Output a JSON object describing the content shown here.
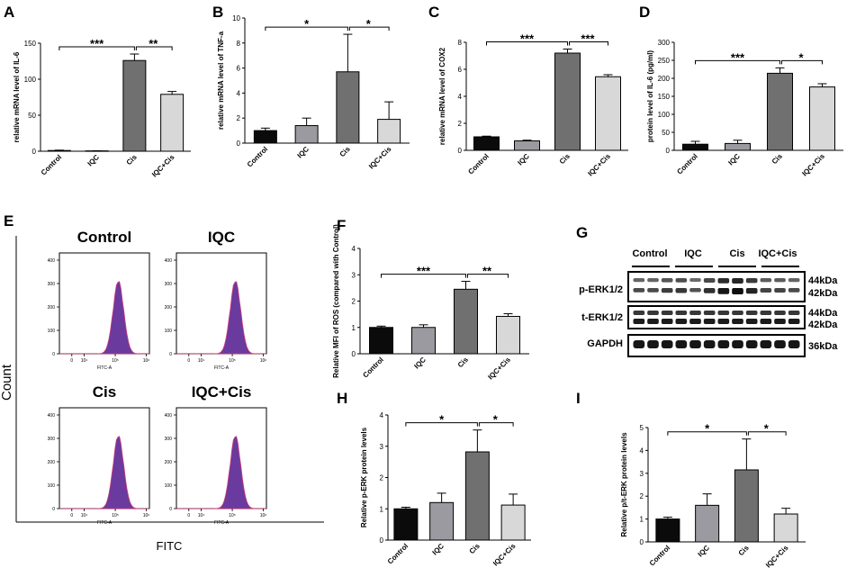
{
  "colors": {
    "control": "#0b0b0b",
    "iqc": "#9a9aa0",
    "cis": "#707070",
    "iqc_cis": "#d8d8d8",
    "histogram": "#6a3a9e",
    "histogram_edge": "#cf3a7a"
  },
  "chart_data": [
    {
      "id": "A",
      "type": "bar",
      "ylabel": "relative mRNA level of IL-6",
      "categories": [
        "Control",
        "IQC",
        "Cis",
        "IQC+Cis"
      ],
      "values": [
        1,
        0.5,
        126,
        79
      ],
      "errors": [
        0.5,
        0.2,
        9,
        4
      ],
      "ylim": [
        0,
        150
      ],
      "yticks": [
        "0",
        "50",
        "100",
        "150"
      ],
      "sig": [
        {
          "from": 0,
          "to": 2,
          "label": "***"
        },
        {
          "from": 2,
          "to": 3,
          "label": "**"
        }
      ]
    },
    {
      "id": "B",
      "type": "bar",
      "ylabel": "relative mRNA level of TNF-a",
      "categories": [
        "Control",
        "IQC",
        "Cis",
        "IQC+Cis"
      ],
      "values": [
        1,
        1.4,
        5.7,
        1.9
      ],
      "errors": [
        0.2,
        0.6,
        3.0,
        1.4
      ],
      "ylim": [
        0,
        10
      ],
      "yticks": [
        "0",
        "2",
        "4",
        "6",
        "8",
        "10"
      ],
      "sig": [
        {
          "from": 0,
          "to": 2,
          "label": "*"
        },
        {
          "from": 2,
          "to": 3,
          "label": "*"
        }
      ]
    },
    {
      "id": "C",
      "type": "bar",
      "ylabel": "relative mRNA level of COX2",
      "categories": [
        "Control",
        "IQC",
        "Cis",
        "IQC+Cis"
      ],
      "values": [
        1,
        0.7,
        7.2,
        5.45
      ],
      "errors": [
        0.05,
        0.05,
        0.3,
        0.15
      ],
      "ylim": [
        0,
        8
      ],
      "yticks": [
        "0",
        "2",
        "4",
        "6",
        "8"
      ],
      "sig": [
        {
          "from": 0,
          "to": 2,
          "label": "***"
        },
        {
          "from": 2,
          "to": 3,
          "label": "***"
        }
      ]
    },
    {
      "id": "D",
      "type": "bar",
      "ylabel": "protein level of IL-6 (pg/ml)",
      "categories": [
        "Control",
        "IQC",
        "Cis",
        "IQC+Cis"
      ],
      "values": [
        17,
        19,
        214,
        176
      ],
      "errors": [
        8,
        9,
        15,
        9
      ],
      "ylim": [
        0,
        300
      ],
      "yticks": [
        "0",
        "50",
        "100",
        "150",
        "200",
        "250",
        "300"
      ],
      "sig": [
        {
          "from": 0,
          "to": 2,
          "label": "***"
        },
        {
          "from": 2,
          "to": 3,
          "label": "*"
        }
      ]
    },
    {
      "id": "F",
      "type": "bar",
      "ylabel": "Relative MFI of ROS (compared with Control)",
      "categories": [
        "Control",
        "IQC",
        "Cis",
        "IQC+Cis"
      ],
      "values": [
        1,
        1,
        2.45,
        1.42
      ],
      "errors": [
        0.05,
        0.1,
        0.3,
        0.1
      ],
      "ylim": [
        0,
        4
      ],
      "yticks": [
        "0",
        "1",
        "2",
        "3",
        "4"
      ],
      "sig": [
        {
          "from": 0,
          "to": 2,
          "label": "***"
        },
        {
          "from": 2,
          "to": 3,
          "label": "**"
        }
      ]
    },
    {
      "id": "H",
      "type": "bar",
      "ylabel": "Relative p-ERK protein levels",
      "categories": [
        "Control",
        "IQC",
        "Cis",
        "IQC+Cis"
      ],
      "values": [
        1,
        1.2,
        2.82,
        1.12
      ],
      "errors": [
        0.05,
        0.3,
        0.7,
        0.35
      ],
      "ylim": [
        0,
        4
      ],
      "yticks": [
        "0",
        "1",
        "2",
        "3",
        "4"
      ],
      "sig": [
        {
          "from": 0,
          "to": 2,
          "label": "*"
        },
        {
          "from": 2,
          "to": 3,
          "label": "*"
        }
      ]
    },
    {
      "id": "I",
      "type": "bar",
      "ylabel": "Relative p/t-ERK protein levels",
      "categories": [
        "Control",
        "IQC",
        "Cis",
        "IQC+Cis"
      ],
      "values": [
        1,
        1.6,
        3.15,
        1.22
      ],
      "errors": [
        0.08,
        0.5,
        1.35,
        0.25
      ],
      "ylim": [
        0,
        5
      ],
      "yticks": [
        "0",
        "1",
        "2",
        "3",
        "4",
        "5"
      ],
      "sig": [
        {
          "from": 0,
          "to": 2,
          "label": "*"
        },
        {
          "from": 2,
          "to": 3,
          "label": "*"
        }
      ]
    }
  ],
  "panel_letters": [
    "A",
    "B",
    "C",
    "D",
    "E",
    "F",
    "G",
    "H",
    "I"
  ],
  "flow": {
    "y_axis_label": "Count",
    "x_axis_label": "FITC",
    "tick_axis_label": "FITC-A",
    "y_ticks": [
      "0",
      "100",
      "200",
      "300",
      "400"
    ],
    "x_ticks": [
      "0",
      "10⁴",
      "10⁵",
      "10⁶"
    ],
    "peak_log": 5.1,
    "panels": [
      {
        "title": "Control"
      },
      {
        "title": "IQC"
      },
      {
        "title": "Cis"
      },
      {
        "title": "IQC+Cis"
      }
    ]
  },
  "western": {
    "groups": [
      "Control",
      "IQC",
      "Cis",
      "IQC+Cis"
    ],
    "rows": [
      {
        "label": "p-ERK1/2",
        "sizes": [
          "44kDa",
          "42kDa"
        ]
      },
      {
        "label": "t-ERK1/2",
        "sizes": [
          "44kDa",
          "42kDa"
        ]
      },
      {
        "label": "GAPDH",
        "sizes": [
          "36kDa"
        ]
      }
    ]
  }
}
